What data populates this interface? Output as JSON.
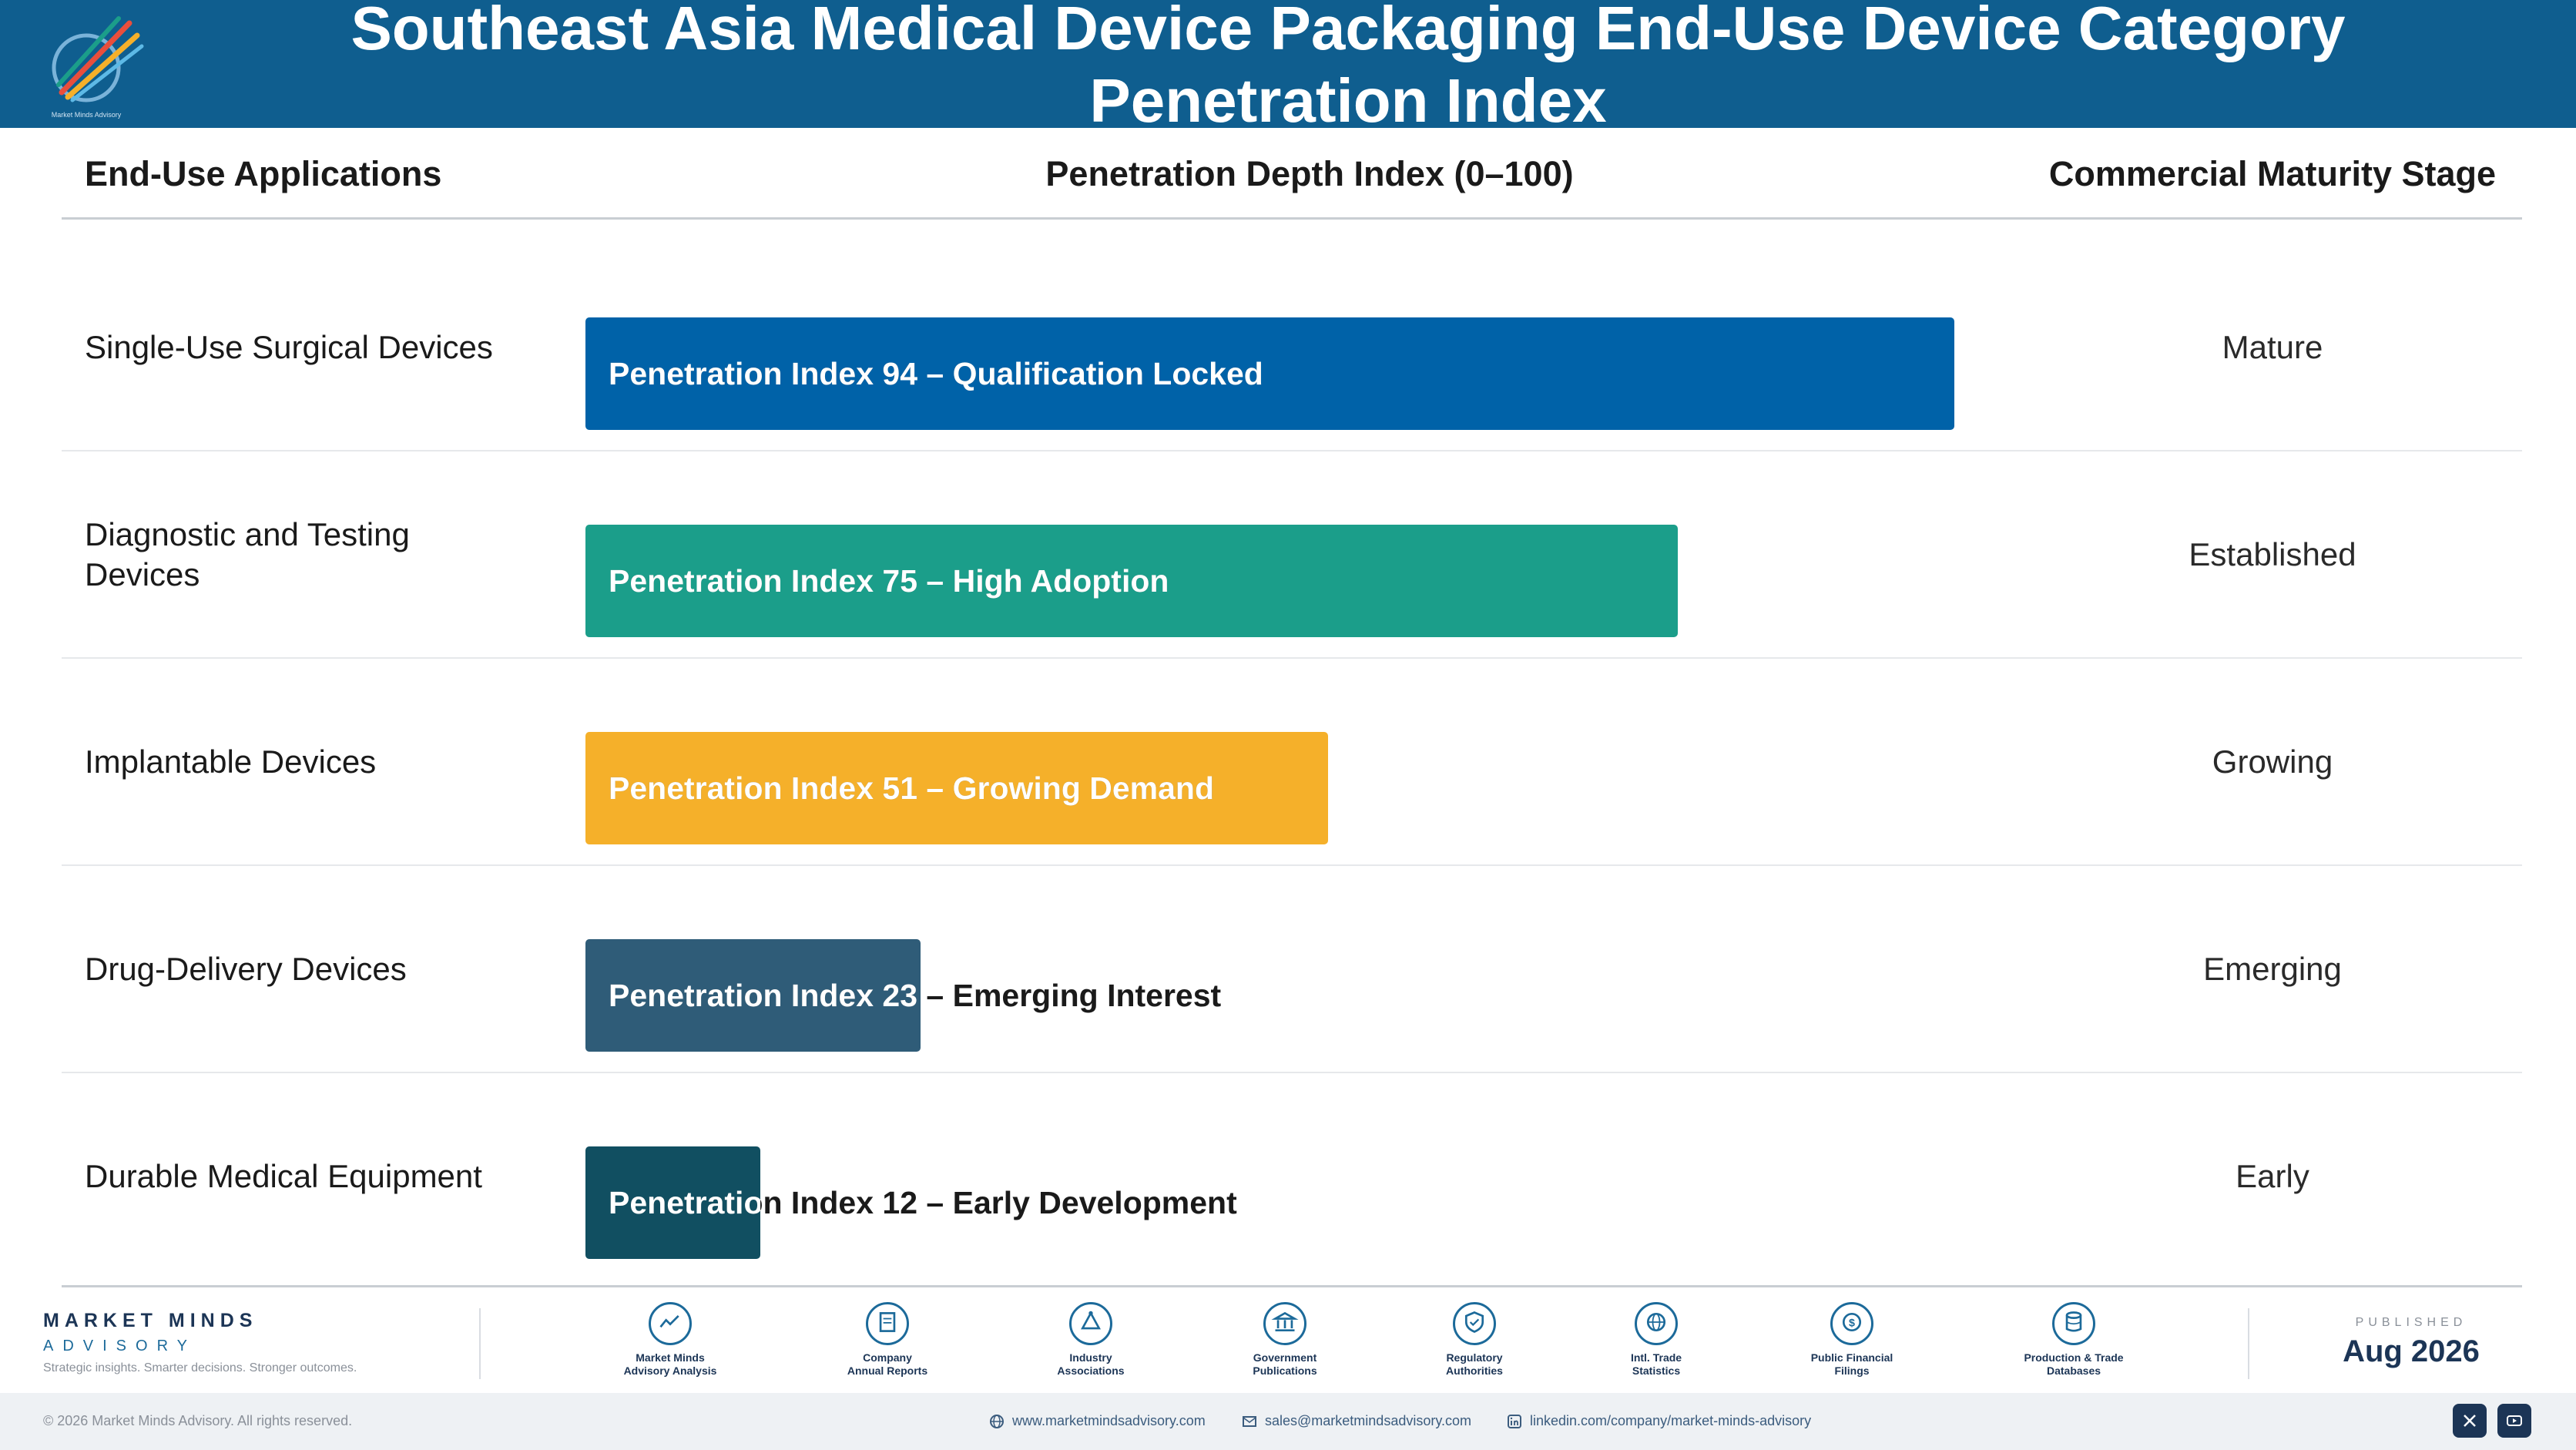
{
  "header": {
    "title_line1": "Southeast Asia Medical Device Packaging End-Use Device Category",
    "title_line2": "Penetration Index",
    "logo_text": "Market Minds Advisory"
  },
  "columns": {
    "applications": "End-Use Applications",
    "index": "Penetration Depth Index (0–100)",
    "stage": "Commercial Maturity Stage"
  },
  "chart_data": {
    "type": "bar",
    "orientation": "horizontal",
    "xlim": [
      0,
      100
    ],
    "categories": [
      "Single-Use Surgical Devices",
      "Diagnostic and Testing Devices",
      "Implantable Devices",
      "Drug-Delivery Devices",
      "Durable Medical Equipment"
    ],
    "values": [
      94,
      75,
      51,
      23,
      12
    ],
    "bar_labels": [
      "Penetration Index 94 – Qualification Locked",
      "Penetration Index 75 – High Adoption",
      "Penetration Index 51 – Growing Demand",
      "Penetration Index 23 – Emerging Interest",
      "Penetration Index 12 – Early Development"
    ],
    "stages": [
      "Mature",
      "Established",
      "Growing",
      "Emerging",
      "Early"
    ],
    "colors": [
      "#0062a8",
      "#1b9e8a",
      "#f5b02a",
      "#2f5c78",
      "#114f61"
    ]
  },
  "footer": {
    "brand_name": "MARKET MINDS",
    "brand_sub": "ADVISORY",
    "tagline": "Strategic insights. Smarter decisions. Stronger outcomes.",
    "sources": [
      {
        "icon": "trend-icon",
        "label1": "Market Minds",
        "label2": "Advisory Analysis"
      },
      {
        "icon": "document-icon",
        "label1": "Company",
        "label2": "Annual Reports"
      },
      {
        "icon": "network-icon",
        "label1": "Industry",
        "label2": "Associations"
      },
      {
        "icon": "government-icon",
        "label1": "Government",
        "label2": "Publications"
      },
      {
        "icon": "shield-icon",
        "label1": "Regulatory",
        "label2": "Authorities"
      },
      {
        "icon": "globe-icon",
        "label1": "Intl. Trade",
        "label2": "Statistics"
      },
      {
        "icon": "coin-icon",
        "label1": "Public Financial",
        "label2": "Filings"
      },
      {
        "icon": "database-icon",
        "label1": "Production & Trade",
        "label2": "Databases"
      }
    ],
    "published_label": "PUBLISHED",
    "published_date": "Aug 2026",
    "copyright": "© 2026 Market Minds Advisory. All rights reserved.",
    "website": "www.marketmindsadvisory.com",
    "email": "sales@marketmindsadvisory.com",
    "linkedin": "linkedin.com/company/market-minds-advisory"
  }
}
